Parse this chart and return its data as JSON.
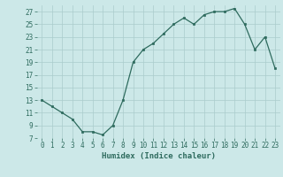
{
  "x": [
    0,
    1,
    2,
    3,
    4,
    5,
    6,
    7,
    8,
    9,
    10,
    11,
    12,
    13,
    14,
    15,
    16,
    17,
    18,
    19,
    20,
    21,
    22,
    23
  ],
  "y": [
    13,
    12,
    11,
    10,
    8,
    8,
    7.5,
    9,
    13,
    19,
    21,
    22,
    23.5,
    25,
    26,
    25,
    26.5,
    27,
    27,
    27.5,
    25,
    21,
    23,
    18
  ],
  "xlabel": "Humidex (Indice chaleur)",
  "xlim": [
    -0.5,
    23.5
  ],
  "ylim": [
    7,
    28
  ],
  "yticks": [
    7,
    9,
    11,
    13,
    15,
    17,
    19,
    21,
    23,
    25,
    27
  ],
  "xticks": [
    0,
    1,
    2,
    3,
    4,
    5,
    6,
    7,
    8,
    9,
    10,
    11,
    12,
    13,
    14,
    15,
    16,
    17,
    18,
    19,
    20,
    21,
    22,
    23
  ],
  "line_color": "#2e6b5e",
  "marker": "s",
  "marker_size": 2.0,
  "bg_color": "#cce8e8",
  "grid_color": "#aacccc",
  "label_fontsize": 6.5,
  "tick_fontsize": 5.5
}
